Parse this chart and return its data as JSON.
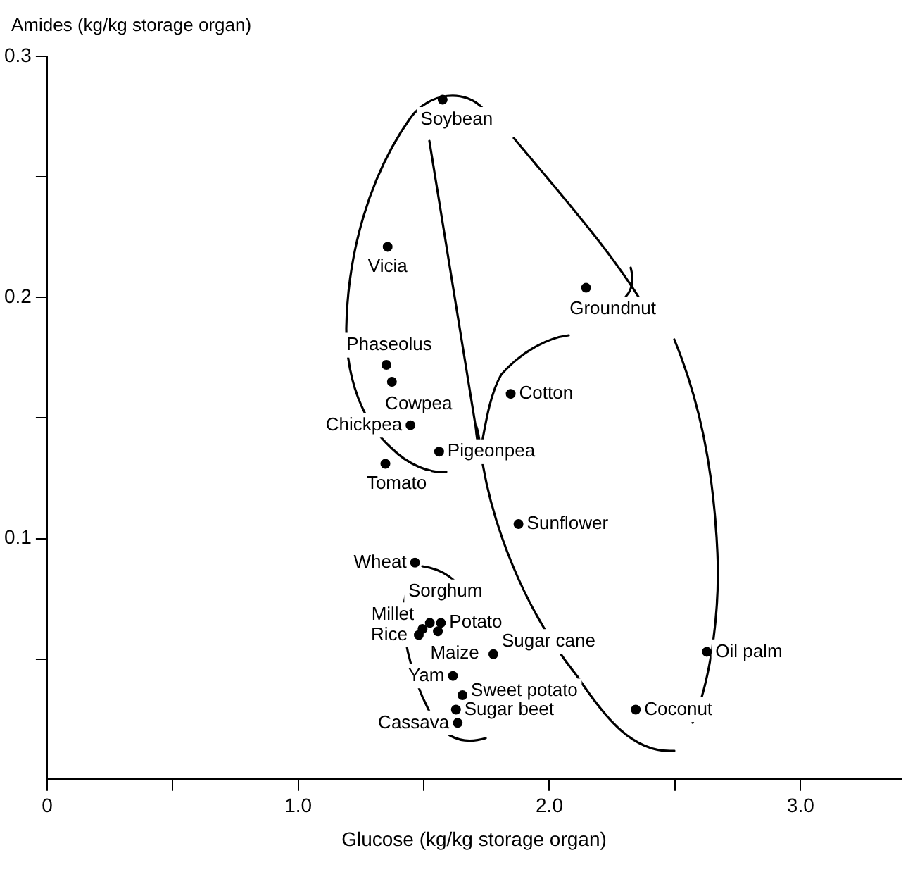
{
  "chart_data": {
    "type": "scatter",
    "xlabel": "Glucose (kg/kg storage organ)",
    "ylabel": "Amides (kg/kg storage organ)",
    "xlim": [
      0,
      3.4
    ],
    "xticks": [
      0,
      {
        "value": 0.5,
        "label": null
      },
      {
        "value": 1,
        "label": "1.0"
      },
      {
        "value": 1.5,
        "label": null
      },
      {
        "value": 2,
        "label": "2.0"
      },
      {
        "value": 2.5,
        "label": null
      },
      {
        "value": 3,
        "label": "3.0"
      }
    ],
    "ylim": [
      0,
      0.3
    ],
    "yticks": [
      {
        "value": 0.05,
        "label": null
      },
      0.1,
      {
        "value": 0.15,
        "label": null
      },
      0.2,
      {
        "value": 0.25,
        "label": null
      },
      0.3
    ],
    "marker": "circle",
    "series": [
      {
        "color": "#000000",
        "x": [
          1.575,
          1.356,
          2.146,
          1.351,
          1.373,
          1.846,
          1.447,
          1.561,
          1.347,
          1.877,
          1.465,
          1.524,
          1.568,
          1.495,
          1.48,
          1.556,
          1.777,
          1.616,
          1.654,
          1.628,
          1.635,
          2.344,
          2.627
        ],
        "values": [
          0.282,
          0.221,
          0.204,
          0.172,
          0.165,
          0.16,
          0.147,
          0.136,
          0.131,
          0.106,
          0.09,
          0.065,
          0.065,
          0.0625,
          0.06,
          0.0615,
          0.052,
          0.043,
          0.035,
          0.029,
          0.0235,
          0.029,
          0.053
        ]
      }
    ],
    "annotations": [
      {
        "text": "Soybean",
        "x": 1.575,
        "y": 0.282
      },
      {
        "text": "Vicia",
        "x": 1.356,
        "y": 0.221
      },
      {
        "text": "Groundnut",
        "x": 2.146,
        "y": 0.204
      },
      {
        "text": "Phaseolus",
        "x": 1.351,
        "y": 0.172
      },
      {
        "text": "Cowpea",
        "x": 1.373,
        "y": 0.165
      },
      {
        "text": "Cotton",
        "x": 1.846,
        "y": 0.16
      },
      {
        "text": "Chickpea",
        "x": 1.447,
        "y": 0.147
      },
      {
        "text": "Pigeonpea",
        "x": 1.561,
        "y": 0.136
      },
      {
        "text": "Tomato",
        "x": 1.347,
        "y": 0.131
      },
      {
        "text": "Sunflower",
        "x": 1.877,
        "y": 0.106
      },
      {
        "text": "Wheat",
        "x": 1.465,
        "y": 0.09
      },
      {
        "text": "Sorghum",
        "x": 1.524,
        "y": 0.065
      },
      {
        "text": "Potato",
        "x": 1.568,
        "y": 0.065
      },
      {
        "text": "Millet",
        "x": 1.495,
        "y": 0.0625
      },
      {
        "text": "Rice",
        "x": 1.48,
        "y": 0.06
      },
      {
        "text": "Maize",
        "x": 1.556,
        "y": 0.0615
      },
      {
        "text": "Sugar cane",
        "x": 1.777,
        "y": 0.052
      },
      {
        "text": "Yam",
        "x": 1.616,
        "y": 0.043
      },
      {
        "text": "Sweet potato",
        "x": 1.654,
        "y": 0.035
      },
      {
        "text": "Sugar beet",
        "x": 1.628,
        "y": 0.029
      },
      {
        "text": "Cassava",
        "x": 1.635,
        "y": 0.0235
      },
      {
        "text": "Coconut",
        "x": 2.344,
        "y": 0.029
      },
      {
        "text": "Oil palm",
        "x": 2.627,
        "y": 0.053
      }
    ]
  }
}
